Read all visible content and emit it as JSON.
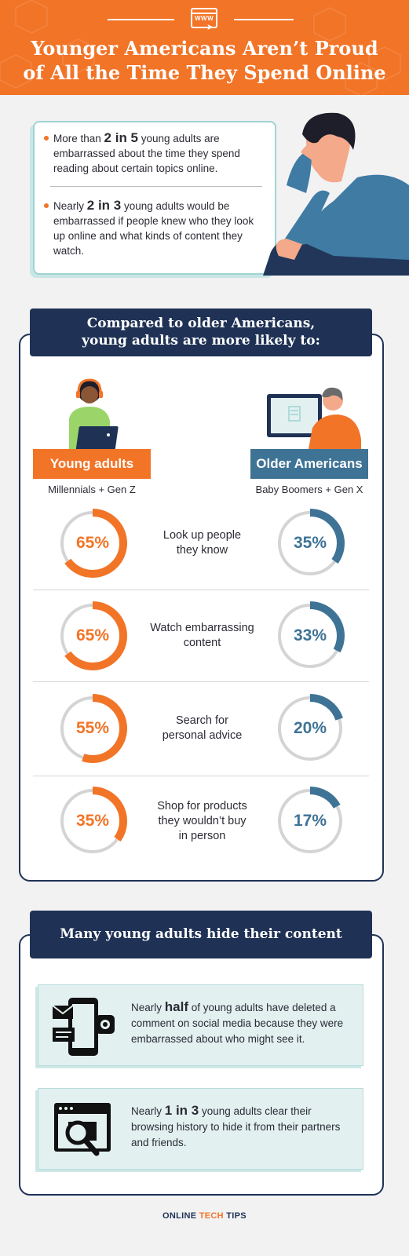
{
  "header": {
    "title_line1": "Younger Americans Aren’t Proud",
    "title_line2": "of All the Time They Spend Online",
    "icon_text": "WWW"
  },
  "intro": {
    "bullet1": {
      "pre": "More than ",
      "highlight": "2 in 5",
      "post": " young adults are embarrassed about the time they spend reading about certain topics online."
    },
    "bullet2": {
      "pre": "Nearly ",
      "highlight": "2 in 3",
      "post": " young adults would be embarrassed if people knew who they look up online and what kinds of content they watch."
    }
  },
  "compare": {
    "title_line1": "Compared to older Americans,",
    "title_line2": "young adults are more likely to:",
    "young": {
      "label": "Young adults",
      "sub": "Millennials + Gen Z",
      "color": "#f27427"
    },
    "older": {
      "label": "Older Americans",
      "sub": "Baby Boomers + Gen X",
      "color": "#3f7396"
    },
    "rows": [
      {
        "label_line1": "Look up people",
        "label_line2": "they know",
        "label_line3": "",
        "young": 65,
        "young_text": "65%",
        "older": 35,
        "older_text": "35%"
      },
      {
        "label_line1": "Watch embarrassing",
        "label_line2": "content",
        "label_line3": "",
        "young": 65,
        "young_text": "65%",
        "older": 33,
        "older_text": "33%"
      },
      {
        "label_line1": "Search for",
        "label_line2": "personal advice",
        "label_line3": "",
        "young": 55,
        "young_text": "55%",
        "older": 20,
        "older_text": "20%"
      },
      {
        "label_line1": "Shop for products",
        "label_line2": "they wouldn’t buy",
        "label_line3": "in person",
        "young": 35,
        "young_text": "35%",
        "older": 17,
        "older_text": "17%"
      }
    ]
  },
  "hide": {
    "title": "Many young adults hide their content",
    "card1": {
      "pre": "Nearly ",
      "highlight": "half",
      "post": " of young adults have deleted a comment on social media because they were embarrassed about who might see it.",
      "icon": "phone-messages-icon"
    },
    "card2": {
      "pre": "Nearly ",
      "highlight": "1 in 3",
      "post": " young adults clear their browsing history to hide it from their partners and friends.",
      "icon": "browser-search-icon"
    }
  },
  "footer": {
    "logo_left": "ONLINE",
    "logo_mid": "TECH",
    "logo_right": "TIPS"
  }
}
